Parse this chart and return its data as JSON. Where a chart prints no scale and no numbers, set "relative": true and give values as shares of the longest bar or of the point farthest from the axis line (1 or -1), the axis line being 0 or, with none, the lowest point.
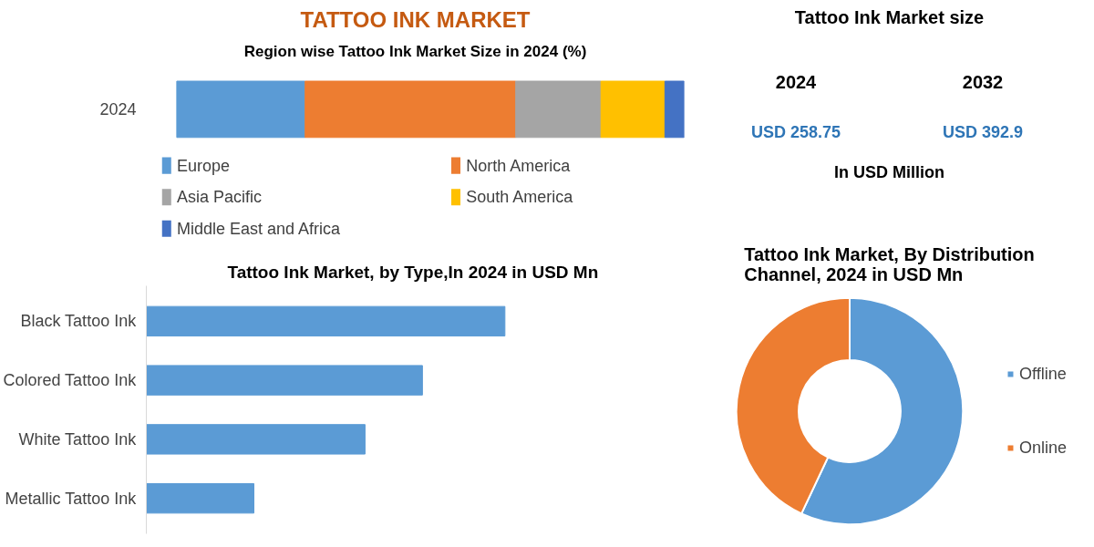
{
  "chart_data": [
    {
      "type": "bar",
      "title": "TATTOO INK MARKET",
      "subtitle": "Region wise Tattoo Ink Market Size in 2024 (%)",
      "orientation": "horizontal",
      "stacked": true,
      "relative": true,
      "categories": [
        "2024"
      ],
      "legend": "bottom",
      "series": [
        {
          "name": "Europe",
          "color": "#5b9bd5",
          "values": [
            0.253
          ]
        },
        {
          "name": "North America",
          "color": "#ed7d31",
          "values": [
            0.415
          ]
        },
        {
          "name": "Asia Pacific",
          "color": "#a5a5a5",
          "values": [
            0.168
          ]
        },
        {
          "name": "South America",
          "color": "#ffc000",
          "values": [
            0.126
          ]
        },
        {
          "name": "Middle East and Africa",
          "color": "#4472c4",
          "values": [
            0.038
          ]
        }
      ]
    },
    {
      "type": "other",
      "title": "Tattoo Ink Market size",
      "categories": [
        "2024",
        "2032"
      ],
      "value_labels": [
        "USD 258.75",
        "USD 392.9"
      ],
      "annotations": [
        "In USD Million"
      ]
    },
    {
      "type": "bar",
      "title": "Tattoo Ink Market, by  Type,In 2024 in USD Mn",
      "orientation": "horizontal",
      "relative": true,
      "categories": [
        "Black Tattoo Ink",
        "Colored Tattoo Ink",
        "White Tattoo Ink",
        "Metallic Tattoo Ink"
      ],
      "values": [
        1,
        0.77,
        0.61,
        0.3
      ],
      "color": "#5b9bd5"
    },
    {
      "type": "donut",
      "title": "Tattoo Ink Market, By Distribution Channel, 2024 in USD Mn",
      "categories": [
        "Offline",
        "Online"
      ],
      "values": [
        57,
        43
      ],
      "colors": [
        "#5b9bd5",
        "#ed7d31"
      ],
      "legend": "right"
    }
  ]
}
